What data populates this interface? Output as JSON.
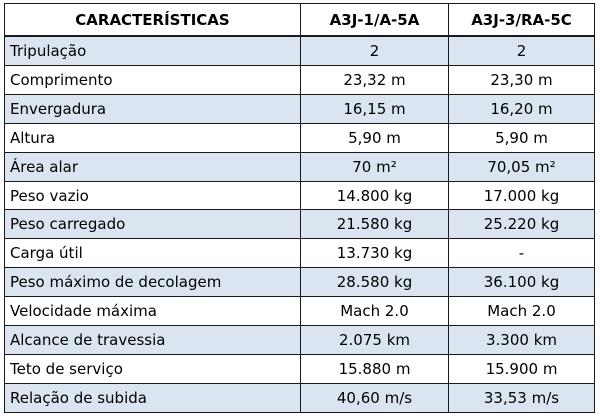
{
  "headers": [
    "CARACTERÍSTICAS",
    "A3J-1/A-5A",
    "A3J-3/RA-5C"
  ],
  "rows": [
    {
      "label": "Tripulação",
      "a": "2",
      "b": "2"
    },
    {
      "label": "Comprimento",
      "a": "23,32 m",
      "b": "23,30 m"
    },
    {
      "label": "Envergadura",
      "a": "16,15 m",
      "b": "16,20 m"
    },
    {
      "label": "Altura",
      "a": "5,90 m",
      "b": "5,90 m"
    },
    {
      "label": "Área alar",
      "a": "70 m²",
      "b": "70,05 m²"
    },
    {
      "label": "Peso vazio",
      "a": "14.800 kg",
      "b": "17.000 kg"
    },
    {
      "label": "Peso carregado",
      "a": "21.580 kg",
      "b": "25.220 kg"
    },
    {
      "label": "Carga útil",
      "a": "13.730 kg",
      "b": "-"
    },
    {
      "label": "Peso máximo de decolagem",
      "a": "28.580 kg",
      "b": "36.100 kg"
    },
    {
      "label": "Velocidade máxima",
      "a": "Mach 2.0",
      "b": "Mach 2.0"
    },
    {
      "label": "Alcance de travessia",
      "a": "2.075 km",
      "b": "3.300 km"
    },
    {
      "label": "Teto de serviço",
      "a": "15.880 m",
      "b": "15.900 m"
    },
    {
      "label": "Relação de subida",
      "a": "40,60 m/s",
      "b": "33,53 m/s"
    }
  ],
  "colors": {
    "shade": "#dbe5f1",
    "border": "#1a1a1a"
  }
}
